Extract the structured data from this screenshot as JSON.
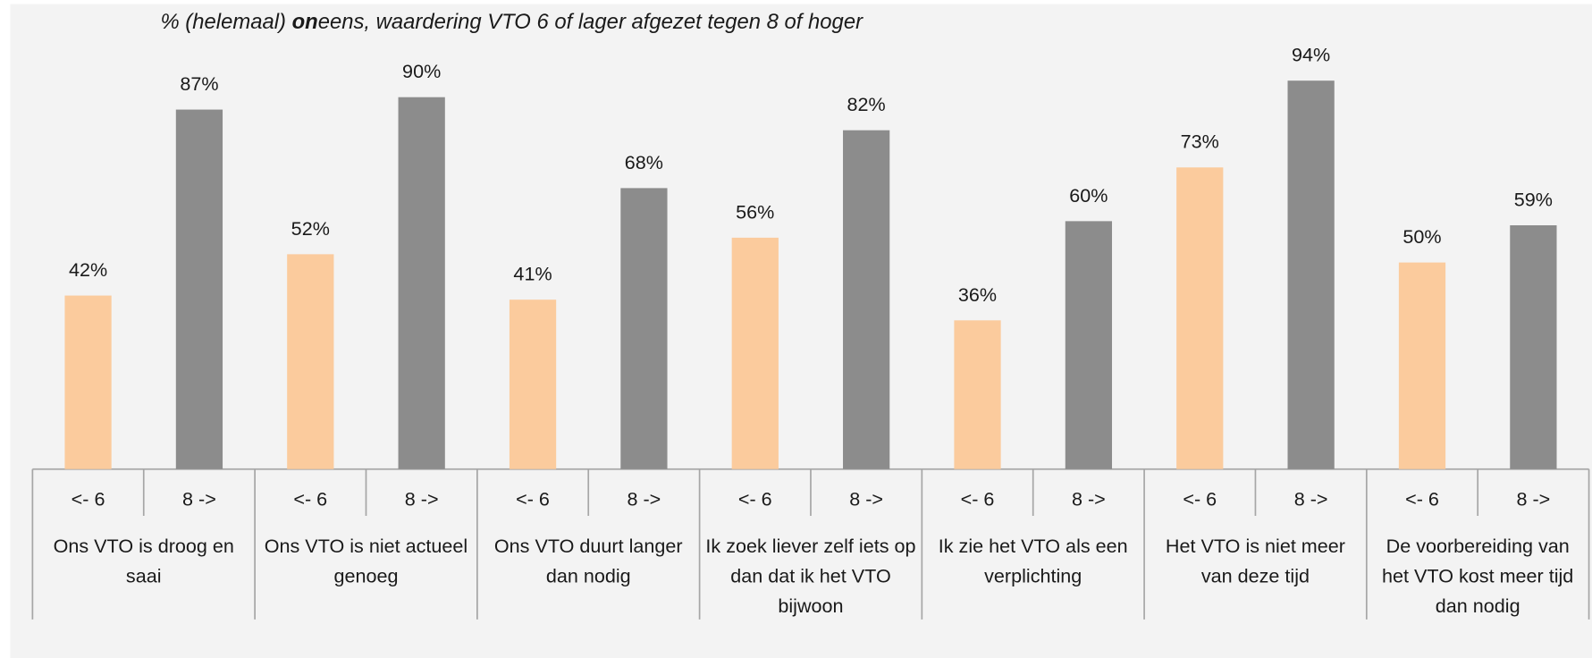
{
  "chart_data": {
    "type": "grouped-bar",
    "title": [
      "% (helemaal) ",
      "on",
      "eens, waardering VTO 6 of lager afgezet tegen 8 of hoger"
    ],
    "categories": [
      "Ons VTO is droog en saai",
      "Ons VTO is niet actueel genoeg",
      "Ons VTO duurt langer dan nodig",
      "Ik zoek liever zelf iets op dan dat ik het VTO bijwoon",
      "Ik zie het VTO als een verplichting",
      "Het VTO is niet meer van deze tijd",
      "De voorbereiding van het VTO kost meer tijd dan nodig"
    ],
    "series": [
      {
        "name": "<- 6",
        "color": "#fbcb9d",
        "values": [
          42,
          52,
          41,
          56,
          36,
          73,
          50
        ],
        "value_labels": [
          "42%",
          "52%",
          "41%",
          "56%",
          "36%",
          "73%",
          "50%"
        ]
      },
      {
        "name": "8 ->",
        "color": "#8c8c8c",
        "values": [
          87,
          90,
          68,
          82,
          60,
          94,
          59
        ],
        "value_labels": [
          "87%",
          "90%",
          "68%",
          "82%",
          "60%",
          "94%",
          "59%"
        ]
      }
    ],
    "ylim": [
      0,
      100
    ]
  }
}
